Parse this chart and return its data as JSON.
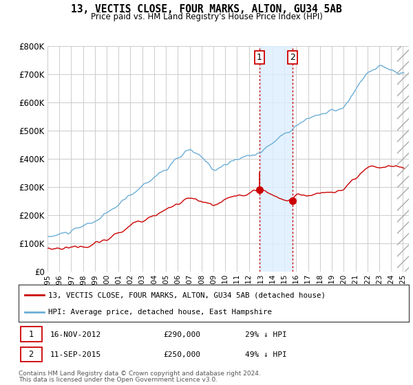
{
  "title": "13, VECTIS CLOSE, FOUR MARKS, ALTON, GU34 5AB",
  "subtitle": "Price paid vs. HM Land Registry's House Price Index (HPI)",
  "ylim": [
    0,
    800000
  ],
  "yticks": [
    0,
    100000,
    200000,
    300000,
    400000,
    500000,
    600000,
    700000,
    800000
  ],
  "ytick_labels": [
    "£0",
    "£100K",
    "£200K",
    "£300K",
    "£400K",
    "£500K",
    "£600K",
    "£700K",
    "£800K"
  ],
  "hpi_color": "#6baed6",
  "price_color": "#cc0000",
  "shade_color": "#ddeeff",
  "transaction1_price": 290000,
  "transaction1_x": 2012.88,
  "transaction2_price": 250000,
  "transaction2_x": 2015.7,
  "shade_xmin": 2012.88,
  "shade_xmax": 2015.7,
  "hatch_xmin": 2024.5,
  "hatch_xmax": 2026.0,
  "footer_line1": "Contains HM Land Registry data © Crown copyright and database right 2024.",
  "footer_line2": "This data is licensed under the Open Government Licence v3.0.",
  "legend_line1": "13, VECTIS CLOSE, FOUR MARKS, ALTON, GU34 5AB (detached house)",
  "legend_line2": "HPI: Average price, detached house, East Hampshire",
  "xlim_start": 1995.0,
  "xlim_end": 2025.5,
  "hpi_seed": 10,
  "price_seed": 20
}
